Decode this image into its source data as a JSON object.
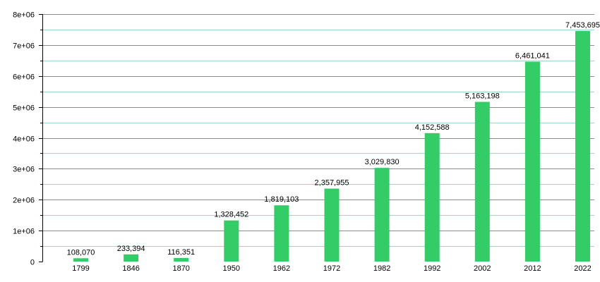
{
  "chart_data": {
    "type": "bar",
    "categories": [
      "1799",
      "1846",
      "1870",
      "1950",
      "1962",
      "1972",
      "1982",
      "1992",
      "2002",
      "2012",
      "2022"
    ],
    "values": [
      108070,
      233394,
      116351,
      1328452,
      1819103,
      2357955,
      3029830,
      4152588,
      5163198,
      6461041,
      7453695
    ],
    "data_labels": [
      "108,070",
      "233,394",
      "116,351",
      "1,328,452",
      "1,819,103",
      "2,357,955",
      "3,029,830",
      "4,152,588",
      "5,163,198",
      "6,461,041",
      "7,453,695"
    ],
    "y_ticks": [
      0,
      1000000,
      2000000,
      3000000,
      4000000,
      5000000,
      6000000,
      7000000,
      8000000
    ],
    "y_tick_labels": [
      "0",
      "1e+06",
      "2e+06",
      "3e+06",
      "4e+06",
      "5e+06",
      "6e+06",
      "7e+06",
      "8e+06"
    ],
    "ylim": [
      0,
      8000000
    ],
    "title": "",
    "xlabel": "",
    "ylabel": "",
    "grid": true,
    "bar_color": "#33cc66",
    "grid_major_color": "#8c8c8c",
    "grid_minor_color": "#9fd6c7"
  }
}
